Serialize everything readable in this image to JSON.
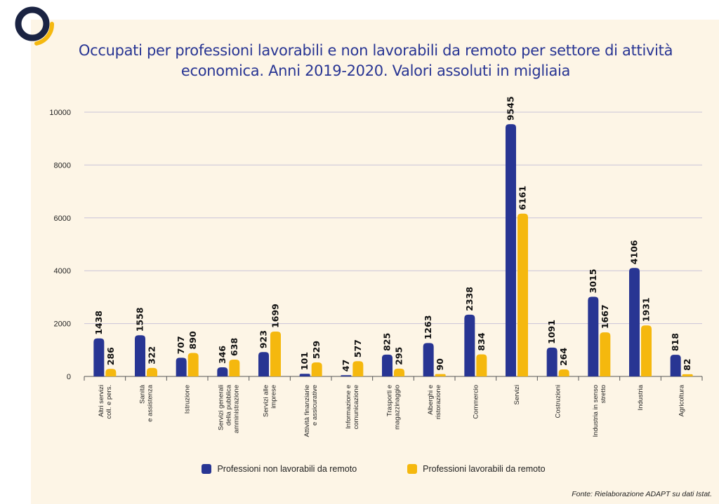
{
  "title": "Occupati per professioni lavorabili e non lavorabili da remoto per settore di attività economica. Anni 2019-2020. Valori assoluti in migliaia",
  "source": "Fonte: Rielaborazione ADAPT su dati Istat.",
  "colors": {
    "series_1": "#283593",
    "series_2": "#f5b80e",
    "title": "#283593",
    "logo_ring": "#1a2342",
    "logo_accent": "#f5b80e"
  },
  "legend": {
    "item_1": "Professioni non lavorabili da remoto",
    "item_2": "Professioni lavorabili da remoto"
  },
  "chart_data": {
    "type": "bar",
    "title": "Occupati per professioni lavorabili e non lavorabili da remoto per settore di attività economica. Anni 2019-2020. Valori assoluti in migliaia",
    "categories": [
      [
        "Altri servizi",
        "coll. e pers."
      ],
      [
        "Sanità",
        "e assistenza"
      ],
      [
        "Istruzione"
      ],
      [
        "Servizi generali",
        "della pubblica",
        "amministrazione"
      ],
      [
        "Servizi alle",
        "imprese"
      ],
      [
        "Attività finanziarie",
        "e assicurative"
      ],
      [
        "Informazione e",
        "comunicazione"
      ],
      [
        "Trasporti e",
        "magazzinaggio"
      ],
      [
        "Alberghi e",
        "ristorazione"
      ],
      [
        "Commercio"
      ],
      [
        "Servizi"
      ],
      [
        "Costruzioni"
      ],
      [
        "Industria in senso",
        "stretto"
      ],
      [
        "Industria"
      ],
      [
        "Agricoltura"
      ]
    ],
    "series": [
      {
        "name": "Professioni non lavorabili da remoto",
        "values": [
          1438,
          1558,
          707,
          346,
          923,
          101,
          47,
          825,
          1263,
          2338,
          9545,
          1091,
          3015,
          4106,
          818
        ]
      },
      {
        "name": "Professioni lavorabili da remoto",
        "values": [
          286,
          322,
          890,
          638,
          1699,
          529,
          577,
          295,
          90,
          834,
          6161,
          264,
          1667,
          1931,
          82
        ]
      }
    ],
    "yticks": [
      "0",
      "2000",
      "4000",
      "6000",
      "8000",
      "10000"
    ],
    "ylim": [
      0,
      10000
    ],
    "grid": true,
    "legend_position": "bottom"
  }
}
